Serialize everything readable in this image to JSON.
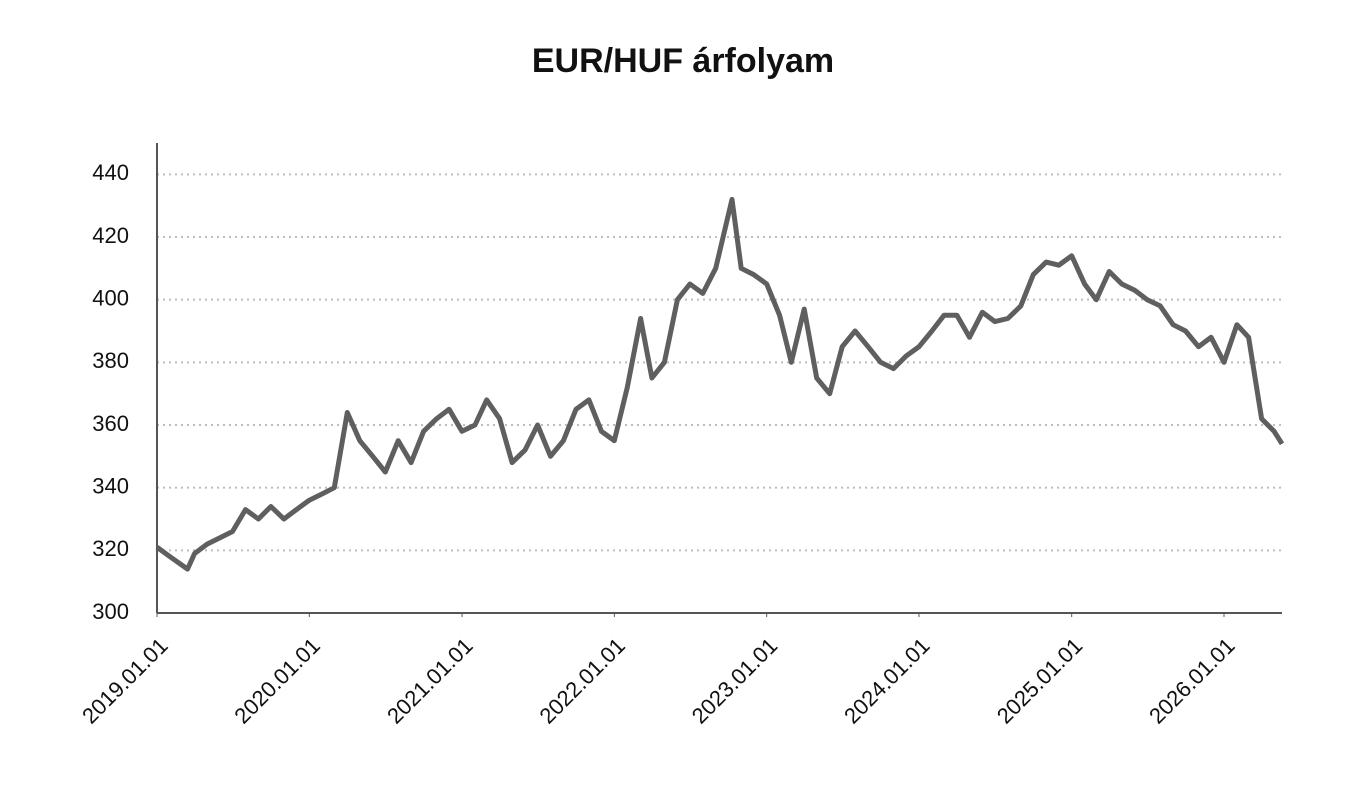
{
  "chart_data": {
    "type": "line",
    "title": "EUR/HUF árfolyam",
    "x": [
      "2019.01.01",
      "2019.02.01",
      "2019.03.15",
      "2019.04.01",
      "2019.05.01",
      "2019.06.01",
      "2019.07.01",
      "2019.08.01",
      "2019.09.01",
      "2019.10.01",
      "2019.11.01",
      "2019.12.01",
      "2020.01.01",
      "2020.02.01",
      "2020.03.01",
      "2020.04.01",
      "2020.05.01",
      "2020.06.01",
      "2020.07.01",
      "2020.08.01",
      "2020.09.01",
      "2020.10.01",
      "2020.11.01",
      "2020.12.01",
      "2021.01.01",
      "2021.02.01",
      "2021.03.01",
      "2021.04.01",
      "2021.05.01",
      "2021.06.01",
      "2021.07.01",
      "2021.08.01",
      "2021.09.01",
      "2021.10.01",
      "2021.11.01",
      "2021.12.01",
      "2022.01.01",
      "2022.02.01",
      "2022.03.05",
      "2022.04.01",
      "2022.05.01",
      "2022.06.01",
      "2022.07.01",
      "2022.08.01",
      "2022.09.01",
      "2022.10.10",
      "2022.11.01",
      "2022.12.01",
      "2023.01.01",
      "2023.02.01",
      "2023.03.01",
      "2023.04.01",
      "2023.05.01",
      "2023.06.01",
      "2023.07.01",
      "2023.08.01",
      "2023.09.01",
      "2023.10.01",
      "2023.11.01",
      "2023.12.01",
      "2024.01.01",
      "2024.02.01",
      "2024.03.01",
      "2024.04.01",
      "2024.05.01",
      "2024.06.01",
      "2024.07.01",
      "2024.08.01",
      "2024.09.01",
      "2024.10.01",
      "2024.11.01",
      "2024.12.01",
      "2025.01.01",
      "2025.02.01",
      "2025.03.01",
      "2025.04.01",
      "2025.05.01",
      "2025.06.01",
      "2025.07.01",
      "2025.08.01",
      "2025.09.01",
      "2025.10.01",
      "2025.11.01",
      "2025.12.01",
      "2026.01.01",
      "2026.02.01",
      "2026.03.01",
      "2026.04.01",
      "2026.05.01",
      "2026.05.20"
    ],
    "series": [
      {
        "name": "EUR/HUF",
        "color": "#5f5f5f",
        "values": [
          321,
          318,
          314,
          319,
          322,
          324,
          326,
          333,
          330,
          334,
          330,
          333,
          336,
          338,
          340,
          364,
          355,
          350,
          345,
          355,
          348,
          358,
          362,
          365,
          358,
          360,
          368,
          362,
          348,
          352,
          360,
          350,
          355,
          365,
          368,
          358,
          355,
          372,
          394,
          375,
          380,
          400,
          405,
          402,
          410,
          432,
          410,
          408,
          405,
          395,
          380,
          397,
          375,
          370,
          385,
          390,
          385,
          380,
          378,
          382,
          385,
          390,
          395,
          395,
          388,
          396,
          393,
          394,
          398,
          408,
          412,
          411,
          414,
          405,
          400,
          409,
          405,
          403,
          400,
          398,
          392,
          390,
          385,
          388,
          380,
          392,
          388,
          362,
          358,
          354
        ]
      }
    ],
    "xlim": [
      "2019.01.01",
      "2026.05.20"
    ],
    "xticks": [
      "2019.01.01",
      "2020.01.01",
      "2021.01.01",
      "2022.01.01",
      "2023.01.01",
      "2024.01.01",
      "2025.01.01",
      "2026.01.01"
    ],
    "ylim": [
      300,
      450
    ],
    "yticks": [
      300,
      320,
      340,
      360,
      380,
      400,
      420,
      440
    ],
    "grid": true
  }
}
